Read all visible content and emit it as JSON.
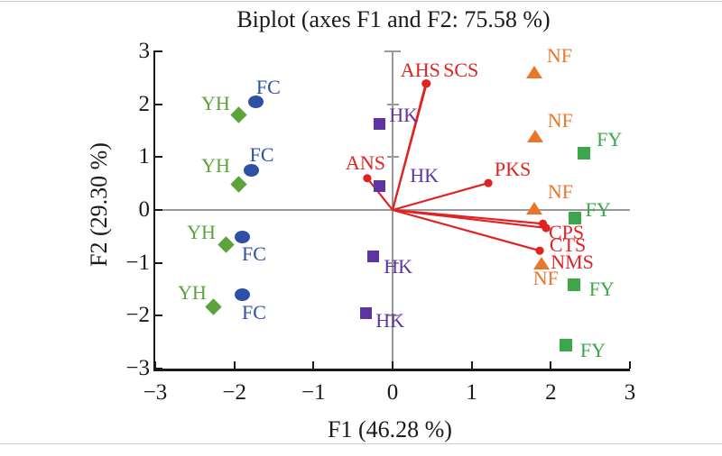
{
  "chart_data": {
    "type": "scatter",
    "title": "Biplot (axes F1 and F2: 75.58 %)",
    "xlabel": "F1 (46.28 %)",
    "ylabel": "F2 (29.30 %)",
    "xlim": [
      -3,
      3
    ],
    "ylim": [
      -3,
      3
    ],
    "xticks": [
      -3,
      -2,
      -1,
      0,
      1,
      2,
      3
    ],
    "xtick_labels": [
      "−3",
      "−2",
      "−1",
      "0",
      "1",
      "2",
      "3"
    ],
    "yticks": [
      -3,
      -2,
      -1,
      0,
      1,
      2,
      3
    ],
    "ytick_labels": [
      "−3",
      "−2",
      "−1",
      "0",
      "1",
      "2",
      "3"
    ],
    "grid": "center axes only",
    "legend": "none",
    "series": [
      {
        "name": "FC",
        "marker": "circle",
        "color": "#2e51a5",
        "points": [
          {
            "x": -1.73,
            "y": 2.04,
            "label": "FC",
            "label_dx": 14,
            "label_dy": -16
          },
          {
            "x": -1.79,
            "y": 0.75,
            "label": "FC",
            "label_dx": 12,
            "label_dy": -17
          },
          {
            "x": -1.9,
            "y": -0.51,
            "label": "FC",
            "label_dx": 13,
            "label_dy": 19
          },
          {
            "x": -1.9,
            "y": -1.6,
            "label": "FC",
            "label_dx": 13,
            "label_dy": 20
          }
        ]
      },
      {
        "name": "YH",
        "marker": "diamond",
        "color": "#5ba33a",
        "points": [
          {
            "x": -1.94,
            "y": 1.79,
            "label": "YH",
            "label_dx": -26,
            "label_dy": -13
          },
          {
            "x": -1.95,
            "y": 0.48,
            "label": "YH",
            "label_dx": -25,
            "label_dy": -21
          },
          {
            "x": -2.11,
            "y": -0.66,
            "label": "YH",
            "label_dx": -27,
            "label_dy": -14
          },
          {
            "x": -2.26,
            "y": -1.84,
            "label": "YH",
            "label_dx": -24,
            "label_dy": -16
          }
        ]
      },
      {
        "name": "HK",
        "marker": "square",
        "color": "#5c35a2",
        "points": [
          {
            "x": -0.17,
            "y": 1.62,
            "label": "HK",
            "label_dx": 27,
            "label_dy": -10
          },
          {
            "x": -0.17,
            "y": 0.46,
            "label": "HK",
            "label_dx": 50,
            "label_dy": -11
          },
          {
            "x": -0.25,
            "y": -0.87,
            "label": "HK",
            "label_dx": 28,
            "label_dy": 12
          },
          {
            "x": -0.34,
            "y": -1.96,
            "label": "HK",
            "label_dx": 27,
            "label_dy": 8
          }
        ]
      },
      {
        "name": "NF",
        "marker": "triangle",
        "color": "#e8772a",
        "points": [
          {
            "x": 1.79,
            "y": 2.61,
            "label": "NF",
            "label_dx": 28,
            "label_dy": -18
          },
          {
            "x": 1.8,
            "y": 1.41,
            "label": "NF",
            "label_dx": 28,
            "label_dy": -16
          },
          {
            "x": 1.79,
            "y": 0.05,
            "label": "NF",
            "label_dx": 29,
            "label_dy": -17
          },
          {
            "x": 1.88,
            "y": -0.99,
            "label": "NF",
            "label_dx": 5,
            "label_dy": 18
          }
        ]
      },
      {
        "name": "FY",
        "marker": "square",
        "color": "#3ca64a",
        "points": [
          {
            "x": 2.42,
            "y": 1.07,
            "label": "FY",
            "label_dx": 28,
            "label_dy": -15
          },
          {
            "x": 2.3,
            "y": -0.15,
            "label": "FY",
            "label_dx": 26,
            "label_dy": -9
          },
          {
            "x": 2.29,
            "y": -1.41,
            "label": "FY",
            "label_dx": 31,
            "label_dy": 5
          },
          {
            "x": 2.19,
            "y": -2.56,
            "label": "FY",
            "label_dx": 30,
            "label_dy": 6
          }
        ]
      }
    ],
    "vectors": {
      "color": "#e02222",
      "origin": [
        0,
        0
      ],
      "items": [
        {
          "label": "AHS",
          "x": 0.42,
          "y": 2.39,
          "label_dx": -6,
          "label_dy": -15
        },
        {
          "label": "SCS",
          "x": 0.43,
          "y": 2.39,
          "label_dx": 38,
          "label_dy": -15
        },
        {
          "label": "ANS",
          "x": -0.32,
          "y": 0.6,
          "label_dx": -2,
          "label_dy": -17
        },
        {
          "label": "PKS",
          "x": 1.21,
          "y": 0.51,
          "label_dx": 27,
          "label_dy": -15
        },
        {
          "label": "CPS",
          "x": 1.9,
          "y": -0.26,
          "label_dx": 26,
          "label_dy": 10
        },
        {
          "label": "CTS",
          "x": 1.94,
          "y": -0.34,
          "label_dx": 24,
          "label_dy": 19
        },
        {
          "label": "NMS",
          "x": 1.86,
          "y": -0.77,
          "label_dx": 36,
          "label_dy": 13
        }
      ]
    }
  }
}
